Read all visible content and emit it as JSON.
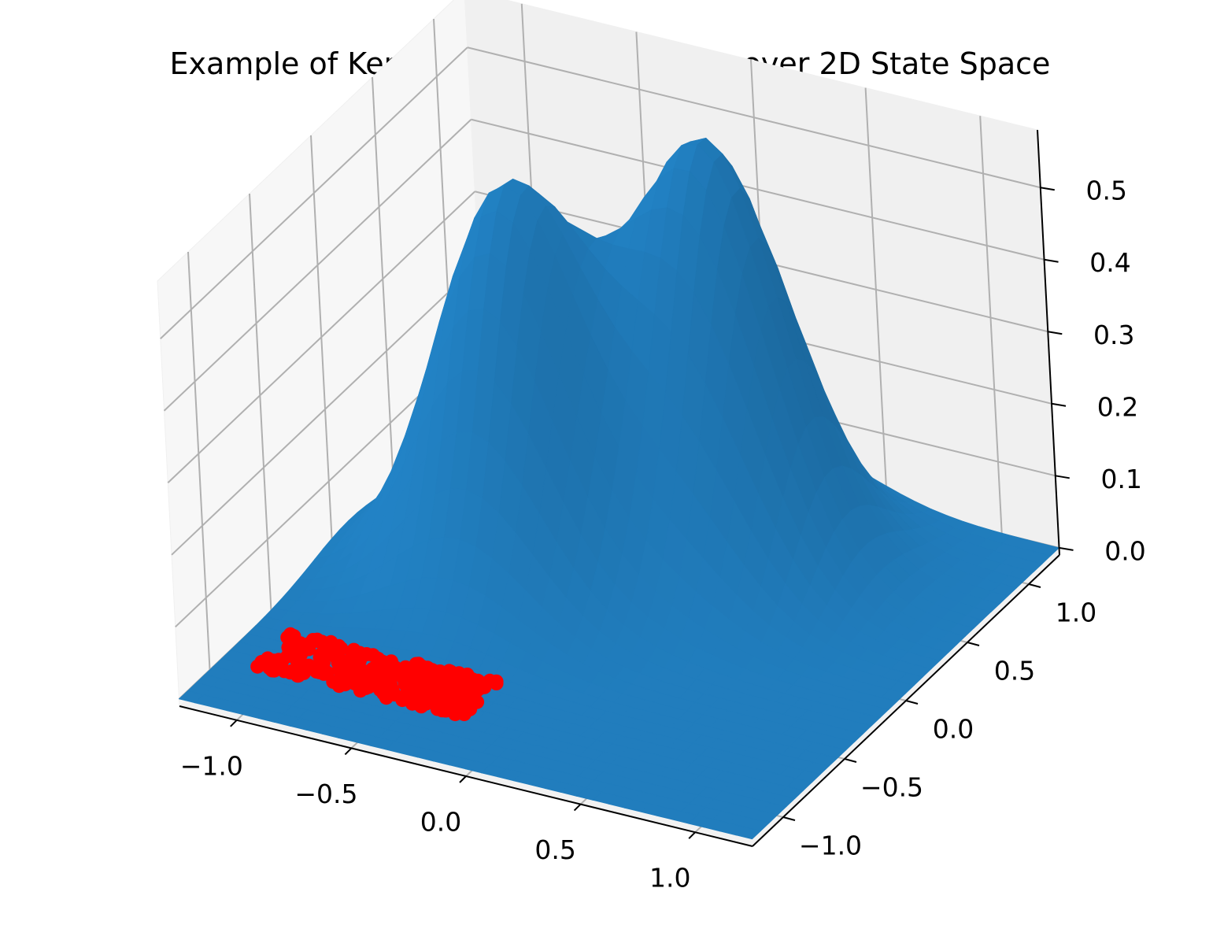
{
  "chart_data": {
    "type": "surface3d",
    "title": "Example of Kernel Density Estimation over 2D State Space",
    "xlabel": "",
    "ylabel": "",
    "zlabel": "",
    "xlim": [
      -1.25,
      1.25
    ],
    "ylim": [
      -1.25,
      1.25
    ],
    "zlim": [
      -0.01,
      0.58
    ],
    "x_ticks": [
      -1.0,
      -0.5,
      0.0,
      0.5,
      1.0
    ],
    "x_tick_labels": [
      "−1.0",
      "−0.5",
      "0.0",
      "0.5",
      "1.0"
    ],
    "y_ticks": [
      -1.0,
      -0.5,
      0.0,
      0.5,
      1.0
    ],
    "y_tick_labels": [
      "−1.0",
      "−0.5",
      "0.0",
      "0.5",
      "1.0"
    ],
    "z_ticks": [
      0.0,
      0.1,
      0.2,
      0.3,
      0.4,
      0.5
    ],
    "z_tick_labels": [
      "0.0",
      "0.1",
      "0.2",
      "0.3",
      "0.4",
      "0.5"
    ],
    "surface": {
      "color": "#1f77b4",
      "kernels": [
        {
          "x": -0.5,
          "y": 0.15,
          "weight": 0.53,
          "sigma": 0.3
        },
        {
          "x": 0.15,
          "y": 0.6,
          "weight": 0.57,
          "sigma": 0.3
        }
      ]
    },
    "samples": {
      "color": "#ff0000",
      "region": {
        "x_range": [
          -1.1,
          -0.2
        ],
        "y_range": [
          -0.9,
          -0.6
        ]
      },
      "z": 0.0
    },
    "grid": true
  }
}
